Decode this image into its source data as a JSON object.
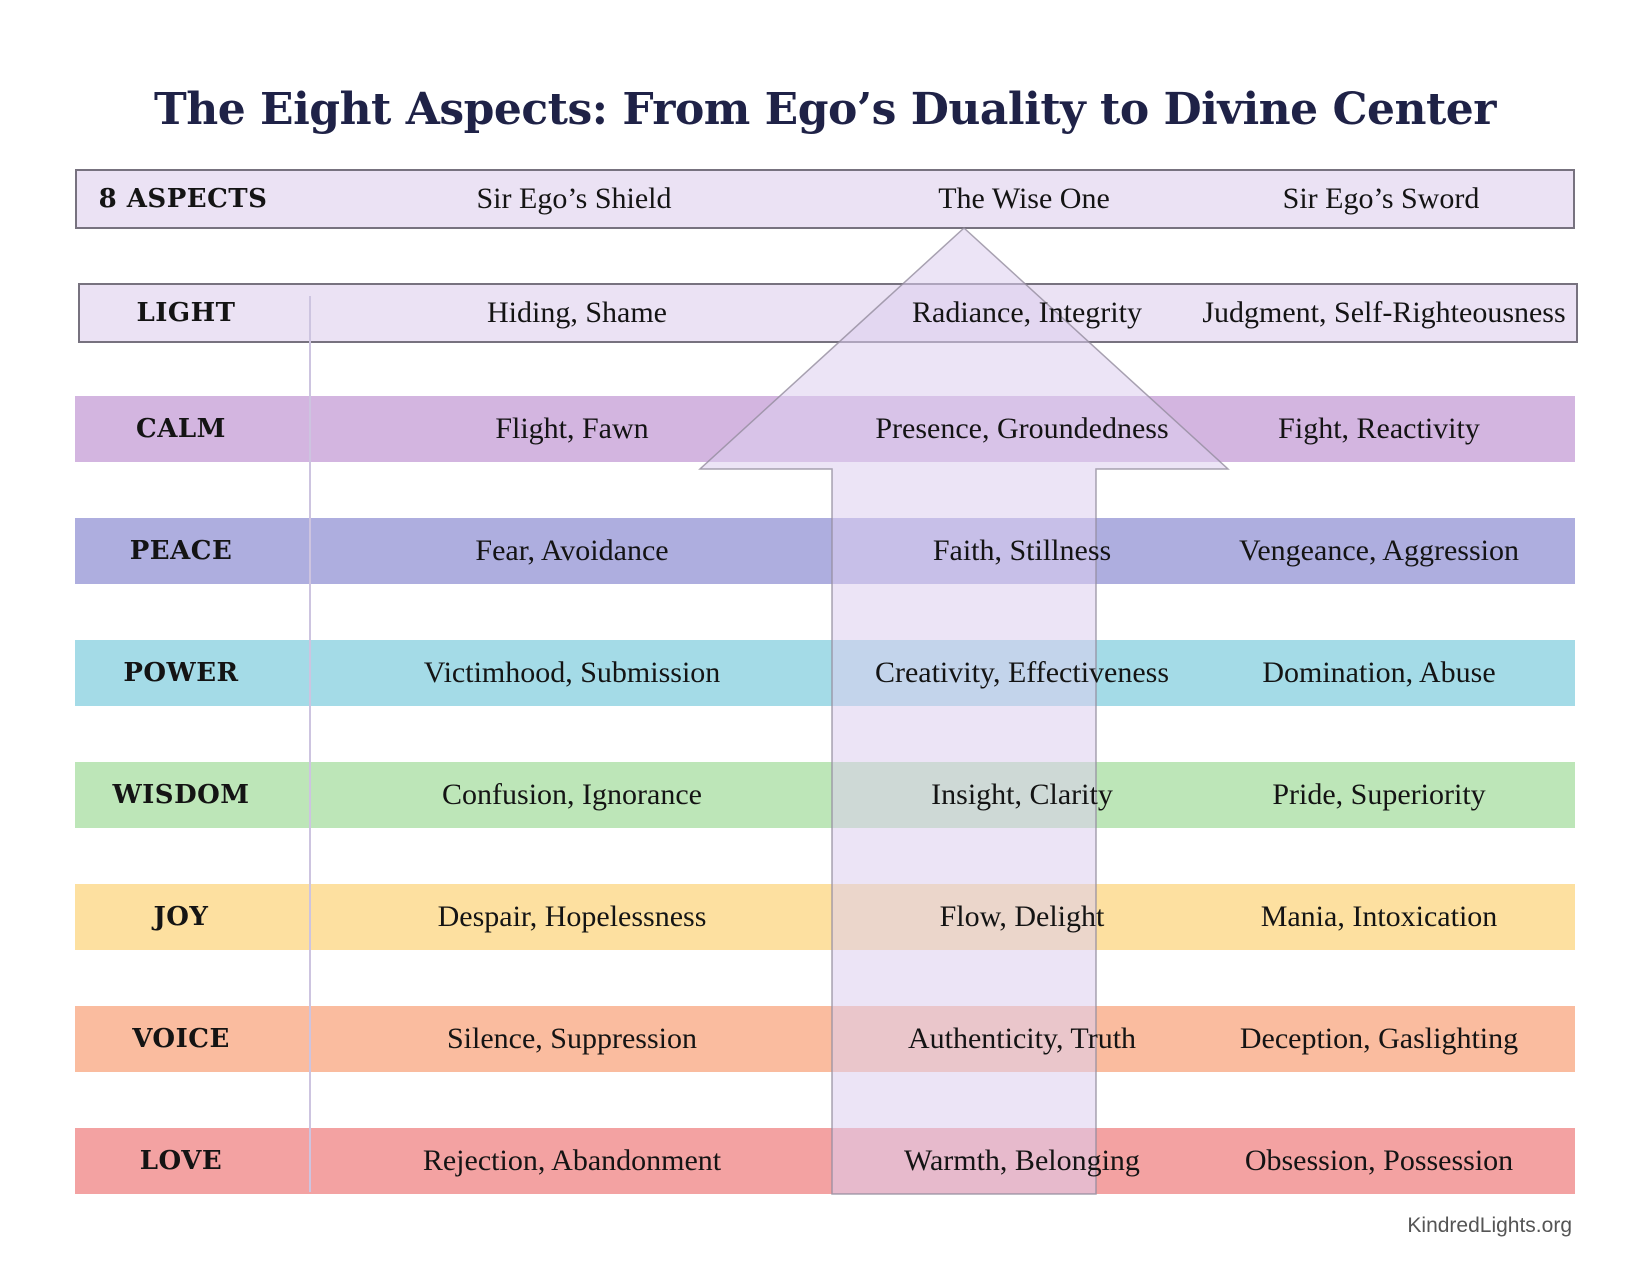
{
  "title": "The Eight Aspects: From Ego’s Duality to Divine Center",
  "header": {
    "label": "8 ASPECTS",
    "shield": "Sir Ego’s Shield",
    "center": "The Wise One",
    "sword": "Sir Ego’s Sword"
  },
  "rows": [
    {
      "label": "LIGHT",
      "shield": "Hiding, Shame",
      "center": "Radiance, Integrity",
      "sword": "Judgment, Self-Righteousness",
      "color": "#ebe2f4"
    },
    {
      "label": "CALM",
      "shield": "Flight, Fawn",
      "center": "Presence, Groundedness",
      "sword": "Fight, Reactivity",
      "color": "#d3b5e0"
    },
    {
      "label": "PEACE",
      "shield": "Fear, Avoidance",
      "center": "Faith, Stillness",
      "sword": "Vengeance, Aggression",
      "color": "#aeaedf"
    },
    {
      "label": "POWER",
      "shield": "Victimhood, Submission",
      "center": "Creativity, Effectiveness",
      "sword": "Domination, Abuse",
      "color": "#a4dbe7"
    },
    {
      "label": "WISDOM",
      "shield": "Confusion, Ignorance",
      "center": "Insight, Clarity",
      "sword": "Pride, Superiority",
      "color": "#bde6b8"
    },
    {
      "label": "JOY",
      "shield": "Despair, Hopelessness",
      "center": "Flow, Delight",
      "sword": "Mania, Intoxication",
      "color": "#fde0a0"
    },
    {
      "label": "VOICE",
      "shield": "Silence, Suppression",
      "center": "Authenticity, Truth",
      "sword": "Deception, Gaslighting",
      "color": "#fabc9f"
    },
    {
      "label": "LOVE",
      "shield": "Rejection, Abandonment",
      "center": "Warmth, Belonging",
      "sword": "Obsession, Possession",
      "color": "#f3a2a2"
    }
  ],
  "header_color": "#ebe2f4",
  "arrow_color": "#dccdef",
  "footer": "KindredLights.org"
}
